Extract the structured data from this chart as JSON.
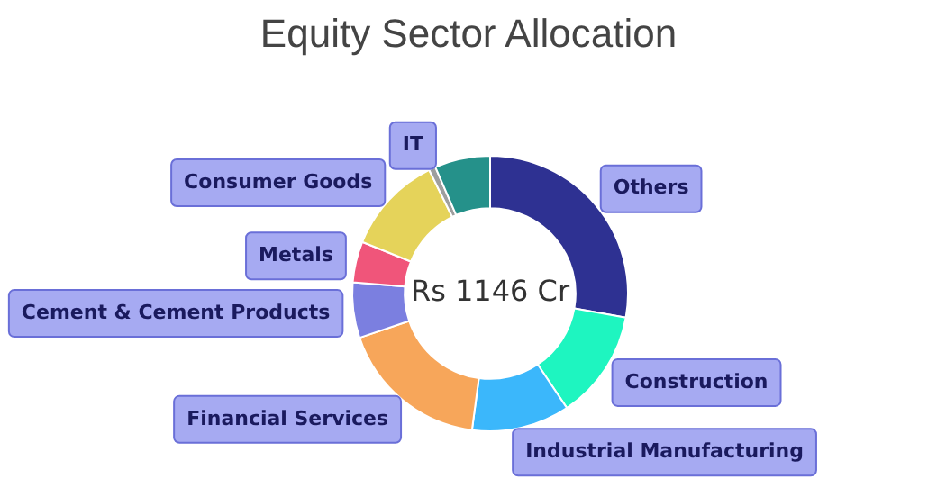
{
  "chart_data": {
    "type": "donut",
    "title": "Equity Sector Allocation",
    "categories": [
      "Others",
      "Construction",
      "Industrial Manufacturing",
      "Financial Services",
      "Cement & Cement Products",
      "Metals",
      "Consumer Goods",
      "IT",
      null
    ],
    "values": [
      27.8,
      12.8,
      11.5,
      17.7,
      6.5,
      4.8,
      11.6,
      0.8,
      6.5
    ],
    "colors": [
      "#2e3192",
      "#1ef5c0",
      "#3bb7fb",
      "#f7a65a",
      "#7b7fe0",
      "#f0557a",
      "#e5d35a",
      "#9e9e9e",
      "#25918a"
    ],
    "annotations": [
      "Rs 1146 Cr"
    ],
    "legend": false
  }
}
